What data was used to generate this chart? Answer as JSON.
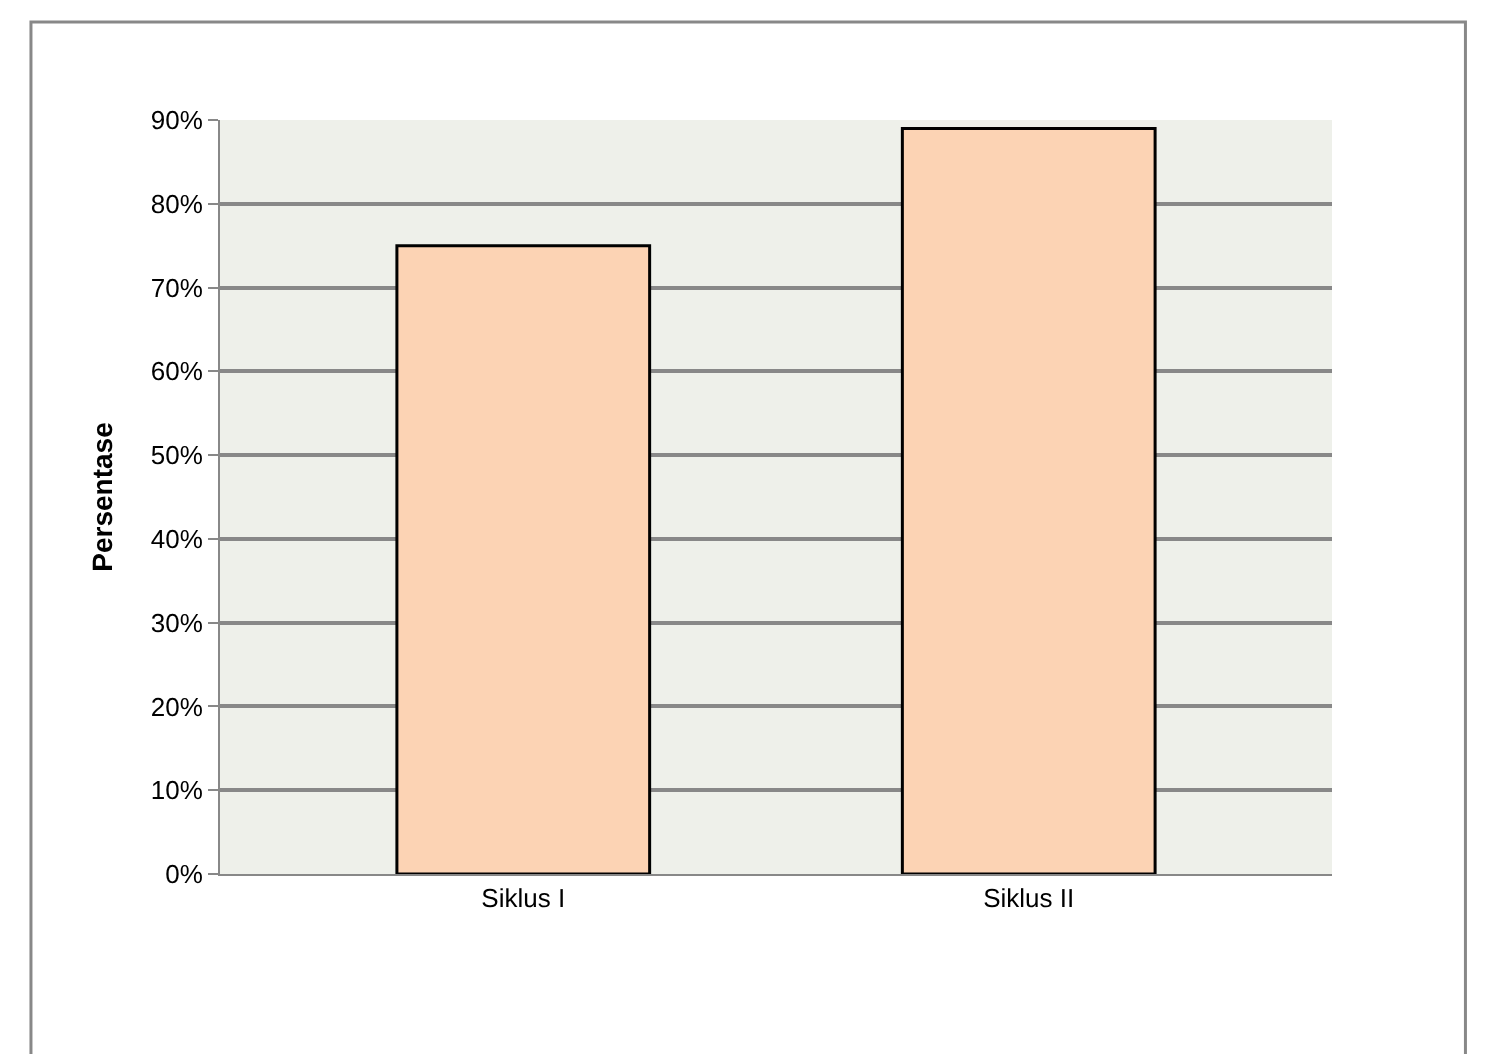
{
  "chart_data": {
    "type": "bar",
    "categories": [
      "Siklus I",
      "Siklus II"
    ],
    "values": [
      75,
      89
    ],
    "color": "#fcd3b4",
    "ylabel": "Persentase",
    "ylim": [
      0,
      90
    ],
    "yticks": [
      {
        "value": 0,
        "label": "0%"
      },
      {
        "value": 10,
        "label": "10%"
      },
      {
        "value": 20,
        "label": "20%"
      },
      {
        "value": 30,
        "label": "30%"
      },
      {
        "value": 40,
        "label": "40%"
      },
      {
        "value": 50,
        "label": "50%"
      },
      {
        "value": 60,
        "label": "60%"
      },
      {
        "value": 70,
        "label": "70%"
      },
      {
        "value": 80,
        "label": "80%"
      },
      {
        "value": 90,
        "label": "90%"
      }
    ],
    "grid": "y",
    "legend": false
  }
}
